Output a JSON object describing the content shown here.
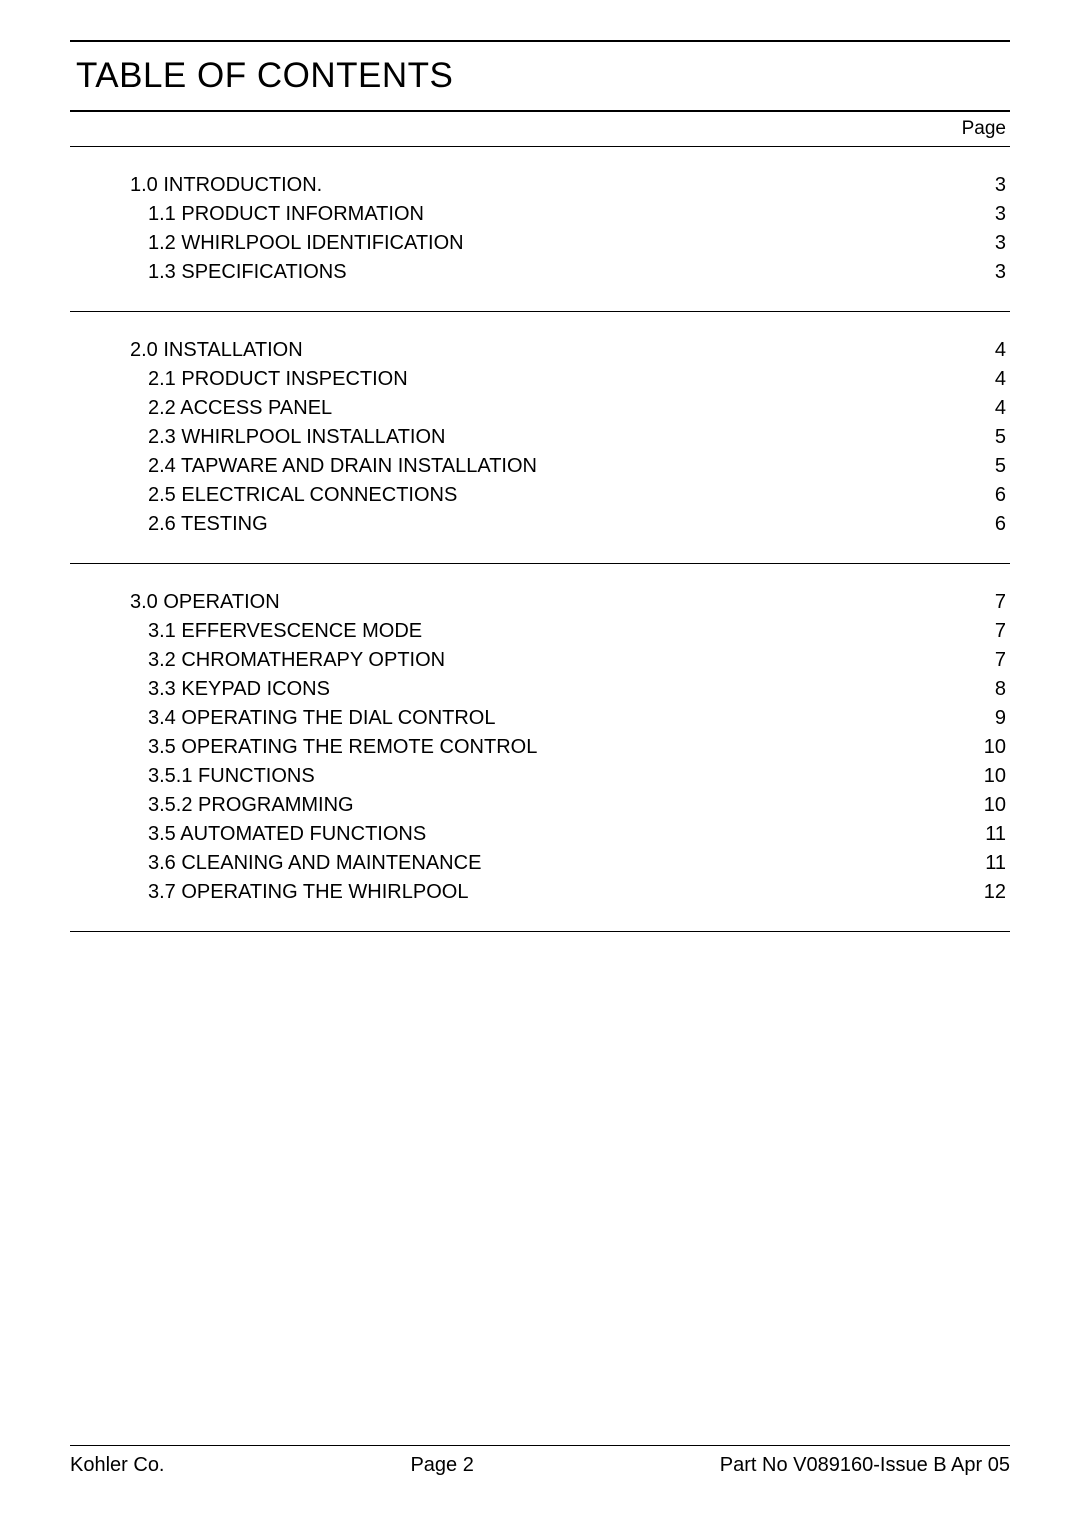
{
  "title": "TABLE OF CONTENTS",
  "page_column_label": "Page",
  "sections": [
    {
      "rows": [
        {
          "label": "1.0 INTRODUCTION.",
          "page": "3",
          "indent": false
        },
        {
          "label": "1.1 PRODUCT INFORMATION",
          "page": "3",
          "indent": true
        },
        {
          "label": "1.2 WHIRLPOOL IDENTIFICATION",
          "page": "3",
          "indent": true
        },
        {
          "label": "1.3 SPECIFICATIONS",
          "page": "3",
          "indent": true
        }
      ]
    },
    {
      "rows": [
        {
          "label": "2.0 INSTALLATION",
          "page": "4",
          "indent": false
        },
        {
          "label": "2.1 PRODUCT INSPECTION",
          "page": "4",
          "indent": true
        },
        {
          "label": "2.2 ACCESS PANEL",
          "page": "4",
          "indent": true
        },
        {
          "label": "2.3 WHIRLPOOL INSTALLATION",
          "page": "5",
          "indent": true
        },
        {
          "label": "2.4 TAPWARE AND DRAIN INSTALLATION",
          "page": "5",
          "indent": true
        },
        {
          "label": "2.5 ELECTRICAL CONNECTIONS",
          "page": "6",
          "indent": true
        },
        {
          "label": "2.6 TESTING",
          "page": "6",
          "indent": true
        }
      ]
    },
    {
      "rows": [
        {
          "label": "3.0 OPERATION",
          "page": "7",
          "indent": false
        },
        {
          "label": "3.1 EFFERVESCENCE MODE",
          "page": "7",
          "indent": true
        },
        {
          "label": "3.2 CHROMATHERAPY OPTION",
          "page": "7",
          "indent": true
        },
        {
          "label": "3.3 KEYPAD ICONS",
          "page": "8",
          "indent": true
        },
        {
          "label": "3.4 OPERATING THE DIAL CONTROL",
          "page": "9",
          "indent": true
        },
        {
          "label": "3.5 OPERATING THE REMOTE CONTROL",
          "page": "10",
          "indent": true
        },
        {
          "label": "3.5.1 FUNCTIONS",
          "page": "10",
          "indent": true
        },
        {
          "label": "3.5.2 PROGRAMMING",
          "page": "10",
          "indent": true
        },
        {
          "label": "3.5 AUTOMATED FUNCTIONS",
          "page": "11",
          "indent": true
        },
        {
          "label": "3.6 CLEANING AND MAINTENANCE",
          "page": "11",
          "indent": true
        },
        {
          "label": "3.7 OPERATING THE WHIRLPOOL",
          "page": "12",
          "indent": true
        }
      ]
    }
  ],
  "footer": {
    "left": "Kohler Co.",
    "center": "Page 2",
    "right": "Part No V089160-Issue B Apr 05"
  }
}
